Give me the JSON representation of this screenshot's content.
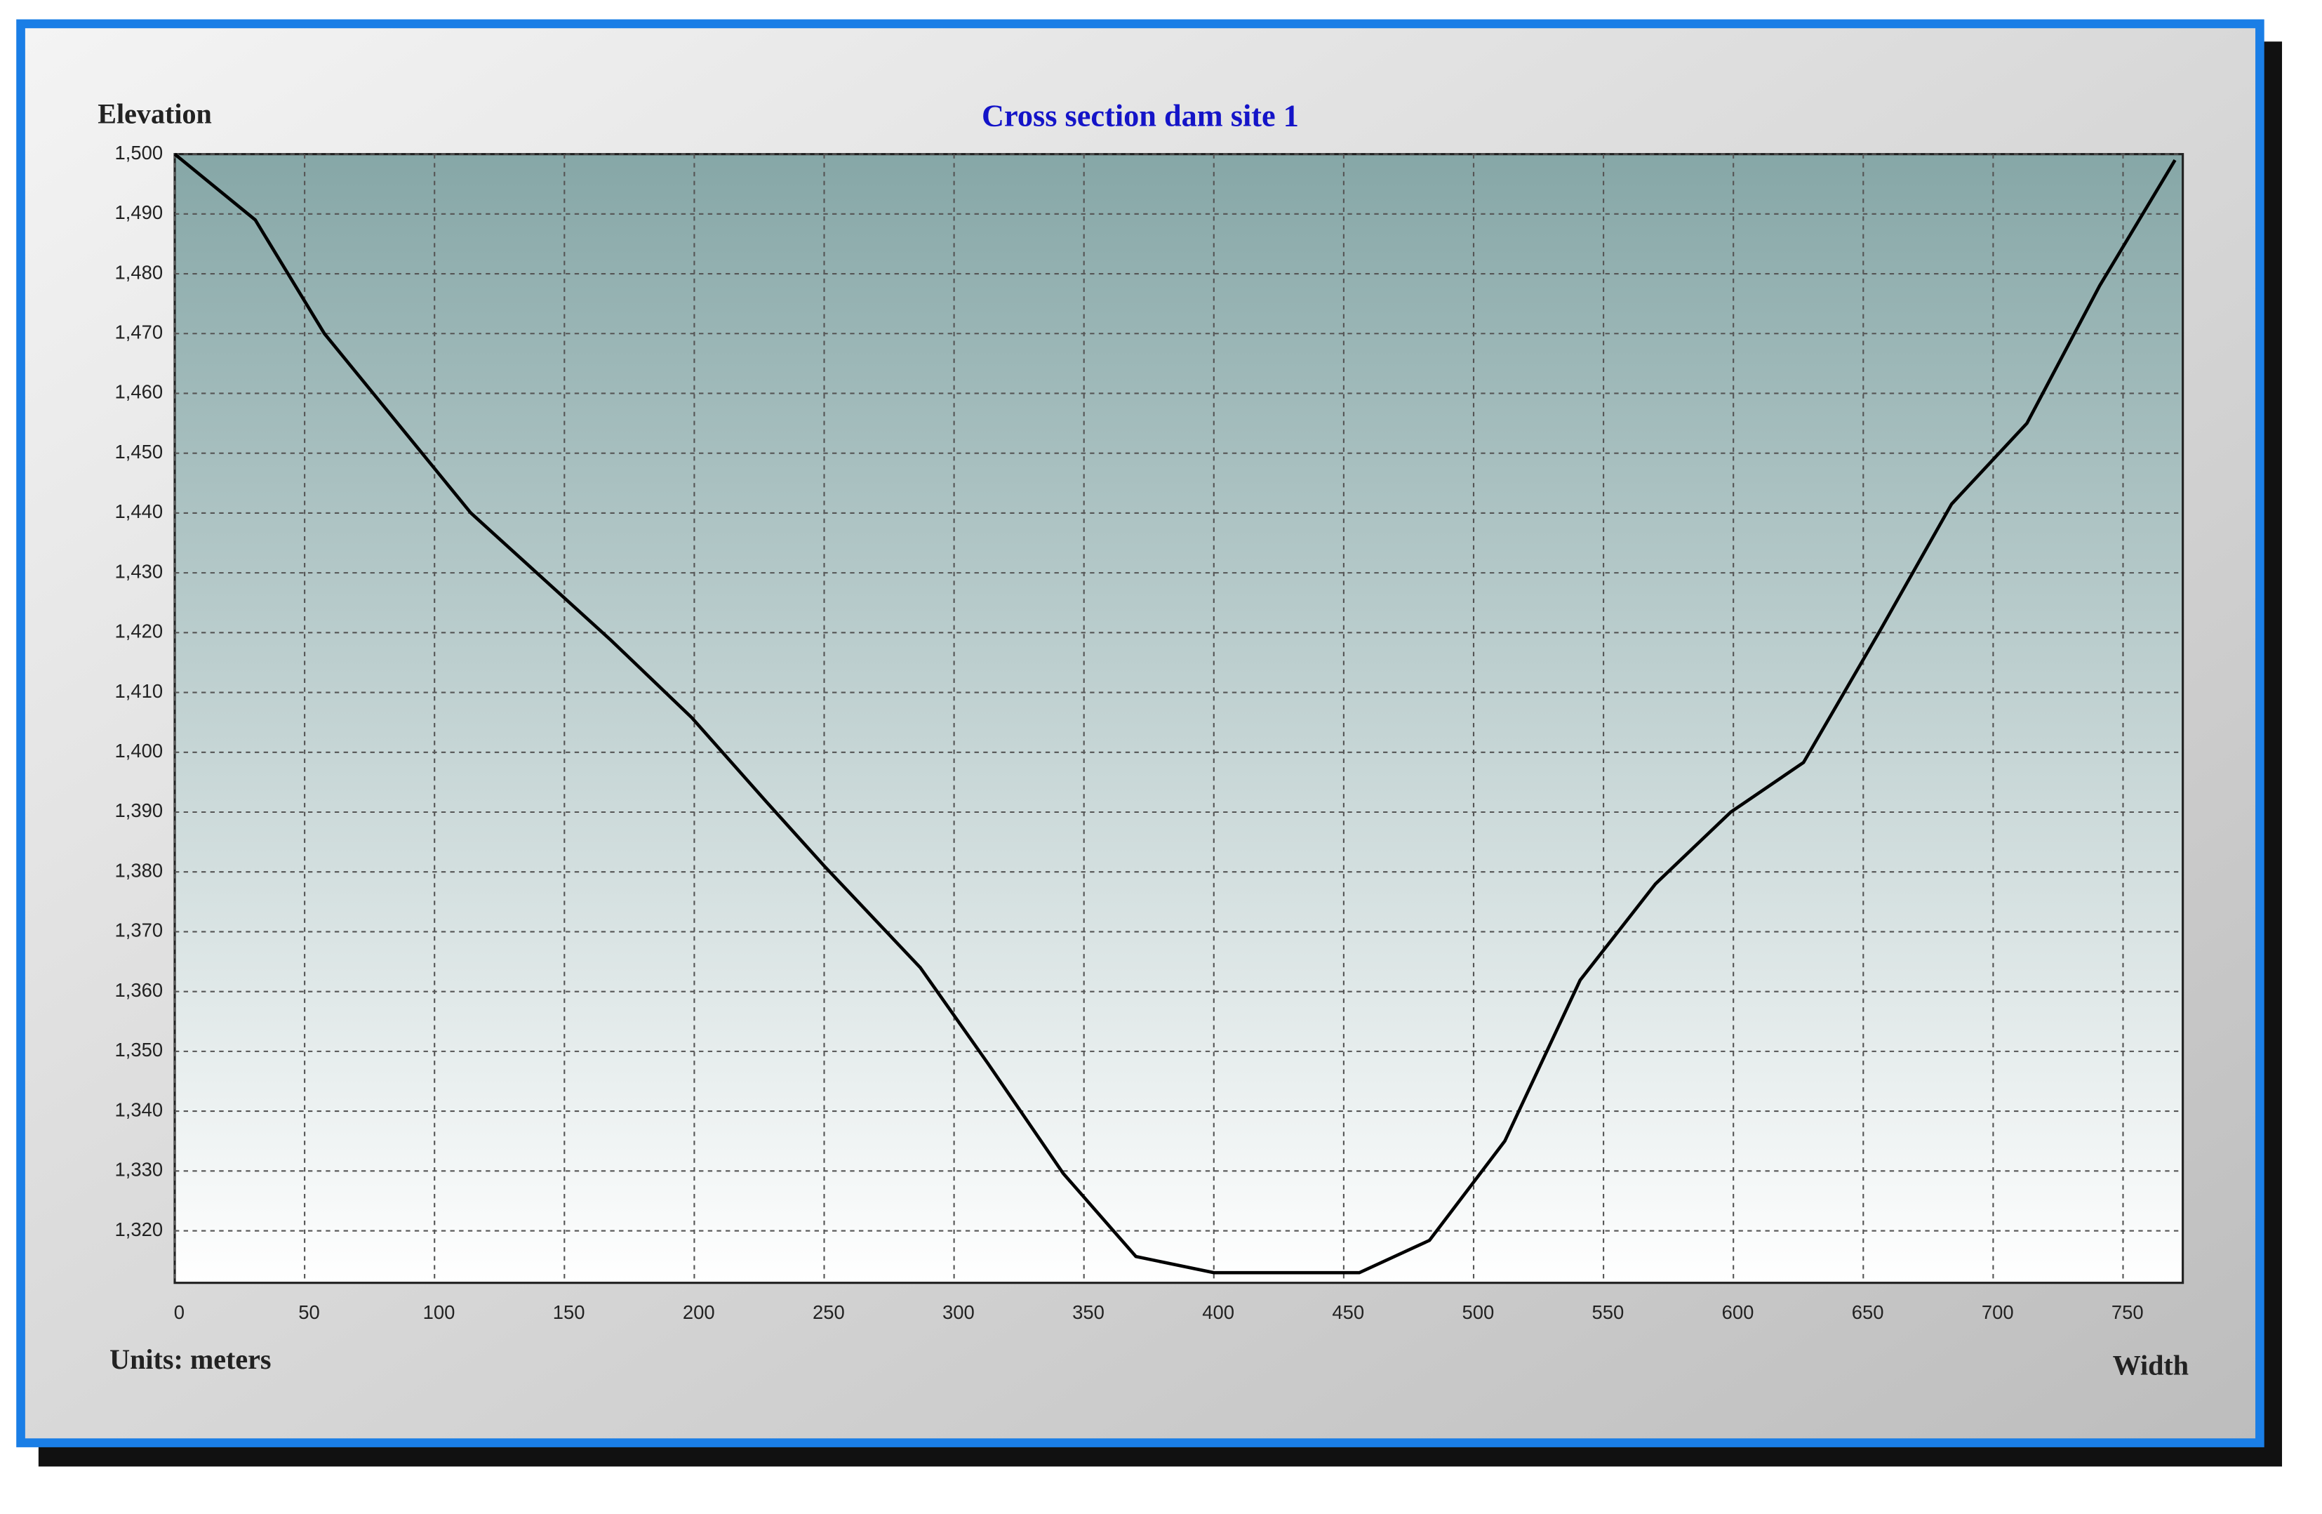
{
  "chart_data": {
    "type": "line",
    "title": "Cross section dam site 1",
    "y_axis_label": "Elevation",
    "x_axis_label": "Width",
    "units_note": "Units: meters",
    "x": [
      0,
      31,
      57.6,
      114,
      168,
      199,
      228,
      250,
      287,
      313,
      342,
      370,
      400,
      456,
      483,
      512,
      541,
      570,
      599,
      627,
      656,
      684,
      713,
      741,
      770
    ],
    "series": [
      {
        "name": "Cross section",
        "color": "#000000",
        "values": [
          1500,
          1489,
          1470,
          1440,
          1418.7,
          1405.8,
          1391.6,
          1381,
          1364,
          1348,
          1329.6,
          1315.7,
          1313,
          1313,
          1318.4,
          1335,
          1361.9,
          1378,
          1390,
          1398.3,
          1420,
          1441.5,
          1455,
          1478,
          1499
        ]
      }
    ],
    "xlim": [
      0,
      773
    ],
    "xticks": [
      0,
      50,
      100,
      150,
      200,
      250,
      300,
      350,
      400,
      450,
      500,
      550,
      600,
      650,
      700,
      750
    ],
    "ylim": [
      1311.3,
      1500
    ],
    "yticks": [
      {
        "value": 1320,
        "label": "1,320"
      },
      {
        "value": 1330,
        "label": "1,330"
      },
      {
        "value": 1340,
        "label": "1,340"
      },
      {
        "value": 1350,
        "label": "1,350"
      },
      {
        "value": 1360,
        "label": "1,360"
      },
      {
        "value": 1370,
        "label": "1,370"
      },
      {
        "value": 1380,
        "label": "1,380"
      },
      {
        "value": 1390,
        "label": "1,390"
      },
      {
        "value": 1400,
        "label": "1,400"
      },
      {
        "value": 1410,
        "label": "1,410"
      },
      {
        "value": 1420,
        "label": "1,420"
      },
      {
        "value": 1430,
        "label": "1,430"
      },
      {
        "value": 1440,
        "label": "1,440"
      },
      {
        "value": 1450,
        "label": "1,450"
      },
      {
        "value": 1460,
        "label": "1,460"
      },
      {
        "value": 1470,
        "label": "1,470"
      },
      {
        "value": 1480,
        "label": "1,480"
      },
      {
        "value": 1490,
        "label": "1,490"
      },
      {
        "value": {
          "value": 1500,
          "label": "1,500"
        }
      }
    ],
    "grid": true
  }
}
